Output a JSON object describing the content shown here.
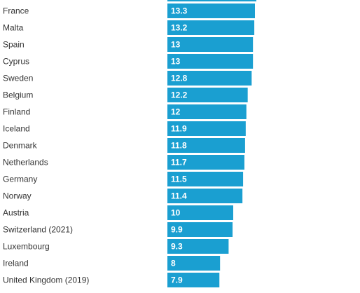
{
  "chart_data": {
    "type": "bar",
    "orientation": "horizontal",
    "categories": [
      "France",
      "Malta",
      "Spain",
      "Cyprus",
      "Sweden",
      "Belgium",
      "Finland",
      "Iceland",
      "Denmark",
      "Netherlands",
      "Germany",
      "Norway",
      "Austria",
      "Switzerland (2021)",
      "Luxembourg",
      "Ireland",
      "United Kingdom (2019)"
    ],
    "values": [
      13.3,
      13.2,
      13,
      13,
      12.8,
      12.2,
      12,
      11.9,
      11.8,
      11.7,
      11.5,
      11.4,
      10,
      9.9,
      9.3,
      8,
      7.9
    ],
    "value_labels": [
      "13.3",
      "13.2",
      "13",
      "13",
      "12.8",
      "12.2",
      "12",
      "11.9",
      "11.8",
      "11.7",
      "11.5",
      "11.4",
      "10",
      "9.9",
      "9.3",
      "8",
      "7.9"
    ],
    "bar_color": "#1a9fd1",
    "title": "",
    "xlabel": "",
    "ylabel": "",
    "xlim": [
      0,
      13.3
    ],
    "grid": false
  }
}
